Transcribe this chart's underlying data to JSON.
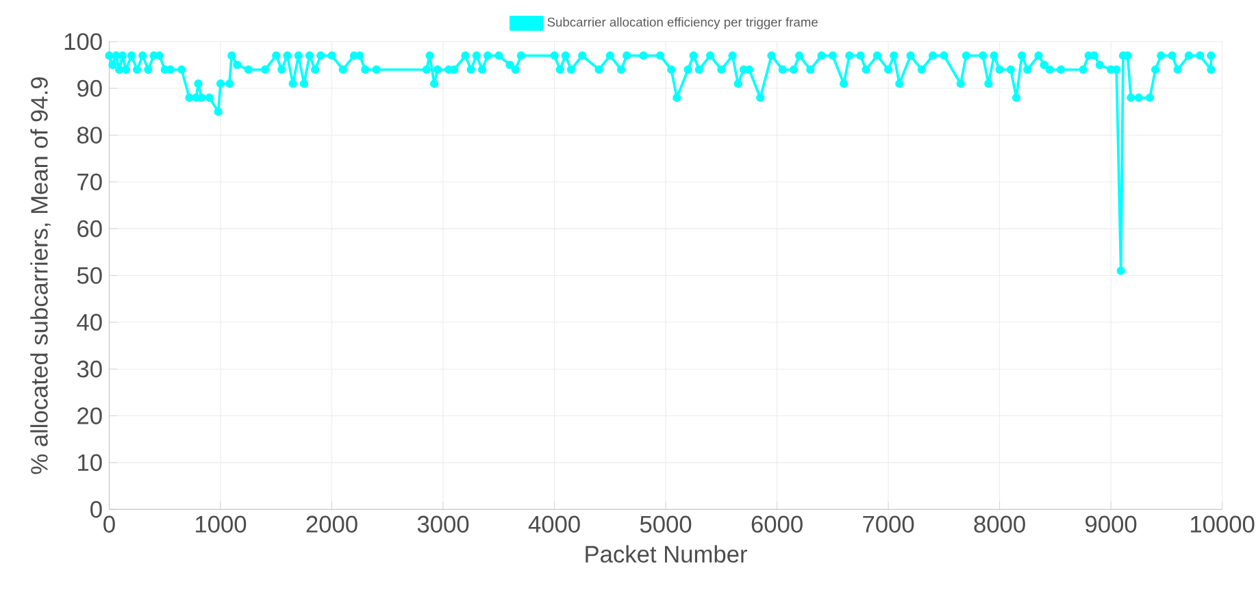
{
  "chart_data": {
    "type": "line",
    "xlabel": "Packet Number",
    "ylabel": "% allocated subcarriers,  Mean of 94.9",
    "xlim": [
      0,
      10000
    ],
    "xticks": [
      0,
      1000,
      2000,
      3000,
      4000,
      5000,
      6000,
      7000,
      8000,
      9000,
      10000
    ],
    "ylim": [
      0,
      100
    ],
    "yticks": [
      0,
      10,
      20,
      30,
      40,
      50,
      60,
      70,
      80,
      90,
      100
    ],
    "grid": true,
    "legend": "top",
    "marker": "circle",
    "line_style": "solid",
    "series": [
      {
        "name": "Subcarrier allocation efficiency per trigger frame",
        "color": "#00ffff",
        "x": [
          0,
          30,
          60,
          90,
          120,
          150,
          200,
          250,
          300,
          350,
          400,
          450,
          500,
          550,
          650,
          720,
          780,
          800,
          830,
          900,
          980,
          1000,
          1080,
          1100,
          1150,
          1250,
          1400,
          1500,
          1550,
          1600,
          1650,
          1700,
          1750,
          1800,
          1850,
          1900,
          2000,
          2100,
          2200,
          2250,
          2300,
          2400,
          2850,
          2880,
          2920,
          2950,
          3050,
          3100,
          3200,
          3250,
          3300,
          3350,
          3400,
          3500,
          3600,
          3650,
          3700,
          4000,
          4050,
          4100,
          4150,
          4250,
          4400,
          4500,
          4600,
          4650,
          4800,
          4950,
          5050,
          5100,
          5200,
          5250,
          5300,
          5400,
          5500,
          5600,
          5650,
          5700,
          5750,
          5850,
          5950,
          6050,
          6150,
          6200,
          6300,
          6400,
          6500,
          6600,
          6650,
          6750,
          6800,
          6900,
          7000,
          7050,
          7100,
          7200,
          7300,
          7400,
          7500,
          7650,
          7700,
          7850,
          7900,
          7950,
          8000,
          8100,
          8150,
          8200,
          8250,
          8350,
          8400,
          8450,
          8550,
          8750,
          8800,
          8850,
          8900,
          9000,
          9050,
          9090,
          9110,
          9150,
          9180,
          9250,
          9350,
          9400,
          9450,
          9550,
          9600,
          9700,
          9800,
          9900,
          9900
        ],
        "values": [
          97,
          95,
          97,
          94,
          97,
          94,
          97,
          94,
          97,
          94,
          97,
          97,
          94,
          94,
          94,
          88,
          88,
          91,
          88,
          88,
          85,
          91,
          91,
          97,
          95,
          94,
          94,
          97,
          94,
          97,
          91,
          97,
          91,
          97,
          94,
          97,
          97,
          94,
          97,
          97,
          94,
          94,
          94,
          97,
          91,
          94,
          94,
          94,
          97,
          94,
          97,
          94,
          97,
          97,
          95,
          94,
          97,
          97,
          94,
          97,
          94,
          97,
          94,
          97,
          94,
          97,
          97,
          97,
          94,
          88,
          94,
          97,
          94,
          97,
          94,
          97,
          91,
          94,
          94,
          88,
          97,
          94,
          94,
          97,
          94,
          97,
          97,
          91,
          97,
          97,
          94,
          97,
          94,
          97,
          91,
          97,
          94,
          97,
          97,
          91,
          97,
          97,
          91,
          97,
          94,
          94,
          88,
          97,
          94,
          97,
          95,
          94,
          94,
          94,
          97,
          97,
          95,
          94,
          94,
          51,
          97,
          97,
          88,
          88,
          88,
          94,
          97,
          97,
          94,
          97,
          97,
          94,
          97
        ]
      }
    ]
  }
}
